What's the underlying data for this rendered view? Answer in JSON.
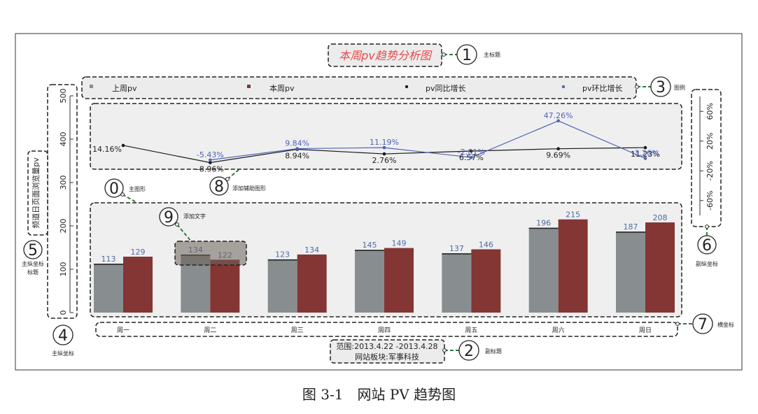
{
  "caption": "图 3-1　网站 PV 趋势图",
  "colors": {
    "last_week": "#888e90",
    "this_week": "#833634",
    "yoy_line": "#1a1a1a",
    "mom_line": "#4f63b8",
    "panel_bg": "#efefef",
    "title_red": "#e8484a",
    "bar_label": "#4d6aa5"
  },
  "annotations": {
    "main_title": "主标题",
    "sub_title": "副标题",
    "legend": "图例",
    "main_y_axis": "主纵坐标",
    "main_y_axis_title": "主纵坐标标题",
    "secondary_y_axis": "副纵坐标",
    "x_axis": "横坐标",
    "main_shape": "主图形",
    "aux_shape": "添加辅助图形",
    "add_text": "添加文字",
    "numbers": [
      "0",
      "1",
      "2",
      "3",
      "4",
      "5",
      "6",
      "7",
      "8",
      "9"
    ]
  },
  "chart_data": {
    "type": "bar",
    "title": "本周pv趋势分析图",
    "subtitle_lines": [
      "范围:2013.4.22 -2013.4.28",
      "网站板块:军事科技"
    ],
    "ylabel": "频道日页面浏览量pv",
    "categories": [
      "周一",
      "周二",
      "周三",
      "周四",
      "周五",
      "周六",
      "周日"
    ],
    "ylim": [
      0,
      500
    ],
    "y_ticks": [
      0,
      100,
      200,
      300,
      400,
      500
    ],
    "series": [
      {
        "name": "上周pv",
        "values": [
          113,
          134,
          123,
          145,
          137,
          196,
          187
        ]
      },
      {
        "name": "本周pv",
        "values": [
          129,
          122,
          134,
          149,
          146,
          215,
          208
        ]
      }
    ],
    "legend_items": [
      "上周pv",
      "本周pv",
      "pv同比增长",
      "pv环比增长"
    ],
    "legend_position": "top",
    "lines": {
      "y2_ticks": [
        "-60%",
        "-20%",
        "20%",
        "60%"
      ],
      "y2_tick_values": [
        -60,
        -20,
        20,
        60
      ],
      "y2lim": [
        -80,
        80
      ],
      "yoy": {
        "name": "pv同比增长",
        "values": [
          14.16,
          -8.96,
          8.94,
          2.76,
          6.57,
          9.69,
          11.23
        ],
        "labels": [
          "14.16%",
          "-8.96%",
          "8.94%",
          "2.76%",
          "6.57%",
          "9.69%",
          "11.23%"
        ]
      },
      "mom": {
        "name": "pv环比增长",
        "values": [
          null,
          -5.43,
          9.84,
          11.19,
          -2.01,
          47.26,
          -3.26
        ],
        "labels": [
          "",
          "-5.43%",
          "9.84%",
          "11.19%",
          "-2.01%",
          "47.26%",
          "-3.26%"
        ]
      }
    }
  }
}
